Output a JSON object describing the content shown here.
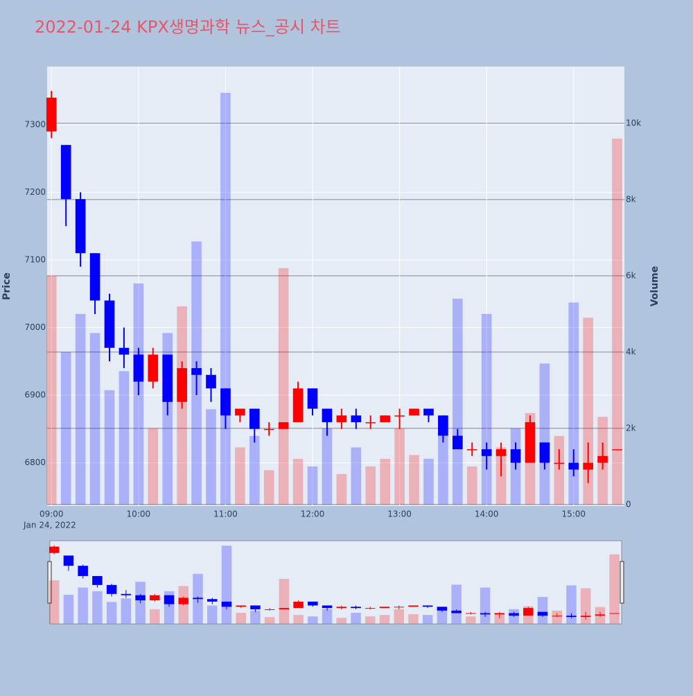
{
  "chart_data": {
    "type": "candlestick",
    "title": "2022-01-24 KPX생명과학 뉴스_공시 차트",
    "y_label": "Price",
    "y2_label": "Volume",
    "x_date_label": "Jan 24, 2022",
    "x": [
      "09:00",
      "09:10",
      "09:20",
      "09:30",
      "09:40",
      "09:50",
      "10:00",
      "10:10",
      "10:20",
      "10:30",
      "10:40",
      "10:50",
      "11:00",
      "11:10",
      "11:20",
      "11:30",
      "11:40",
      "11:50",
      "12:00",
      "12:10",
      "12:20",
      "12:30",
      "12:40",
      "12:50",
      "13:00",
      "13:10",
      "13:20",
      "13:30",
      "13:40",
      "13:50",
      "14:00",
      "14:10",
      "14:20",
      "14:30",
      "14:40",
      "14:50",
      "15:00",
      "15:10",
      "15:20",
      "15:30"
    ],
    "open": [
      7290,
      7270,
      7190,
      7110,
      7040,
      6970,
      6960,
      6920,
      6960,
      6890,
      6940,
      6930,
      6910,
      6870,
      6880,
      6850,
      6850,
      6860,
      6910,
      6880,
      6860,
      6870,
      6860,
      6860,
      6870,
      6870,
      6880,
      6870,
      6840,
      6820,
      6820,
      6810,
      6820,
      6800,
      6830,
      6800,
      6800,
      6790,
      6800,
      6820
    ],
    "high": [
      7350,
      7270,
      7200,
      7110,
      7050,
      7000,
      6970,
      6970,
      6960,
      6950,
      6950,
      6940,
      6910,
      6880,
      6880,
      6860,
      6860,
      6920,
      6910,
      6880,
      6880,
      6880,
      6870,
      6870,
      6880,
      6880,
      6880,
      6870,
      6850,
      6830,
      6830,
      6830,
      6830,
      6870,
      6830,
      6820,
      6820,
      6830,
      6830,
      6820
    ],
    "low": [
      7280,
      7150,
      7090,
      7020,
      6950,
      6940,
      6900,
      6910,
      6870,
      6880,
      6900,
      6890,
      6850,
      6860,
      6830,
      6840,
      6850,
      6860,
      6870,
      6840,
      6850,
      6850,
      6850,
      6860,
      6850,
      6870,
      6860,
      6830,
      6820,
      6810,
      6790,
      6780,
      6790,
      6800,
      6790,
      6790,
      6780,
      6770,
      6790,
      6820
    ],
    "close": [
      7340,
      7190,
      7110,
      7040,
      6970,
      6960,
      6920,
      6960,
      6890,
      6940,
      6930,
      6910,
      6870,
      6880,
      6850,
      6850,
      6860,
      6910,
      6880,
      6860,
      6870,
      6860,
      6860,
      6870,
      6870,
      6880,
      6870,
      6840,
      6820,
      6820,
      6810,
      6820,
      6800,
      6860,
      6800,
      6800,
      6790,
      6800,
      6810,
      6820
    ],
    "volume": [
      6000,
      4000,
      5000,
      4500,
      3000,
      3500,
      5800,
      2000,
      4500,
      5200,
      6900,
      2500,
      10800,
      1500,
      1800,
      900,
      6200,
      1200,
      1000,
      2000,
      800,
      1500,
      1000,
      1200,
      2000,
      1300,
      1200,
      1800,
      5400,
      1000,
      5000,
      1500,
      2000,
      2400,
      3700,
      1800,
      5300,
      4900,
      2300,
      9600
    ],
    "increasing_color": "#ff0000",
    "decreasing_color": "#0000ff",
    "xlim": [
      "08:57",
      "15:35"
    ],
    "xticks": [
      "09:00",
      "10:00",
      "11:00",
      "12:00",
      "13:00",
      "14:00",
      "15:00"
    ],
    "ylim": [
      6736,
      7386
    ],
    "yticks": [
      6800,
      6900,
      7000,
      7100,
      7200,
      7300
    ],
    "y2lim": [
      -40,
      11490
    ],
    "y2ticks": [
      0,
      {
        "value": 2000,
        "label": "2k"
      },
      {
        "value": 4000,
        "label": "4k"
      },
      {
        "value": 6000,
        "label": "6k"
      },
      {
        "value": 8000,
        "label": "8k"
      },
      {
        "value": 10000,
        "label": "10k"
      }
    ],
    "grid": true,
    "rangeslider": true
  }
}
